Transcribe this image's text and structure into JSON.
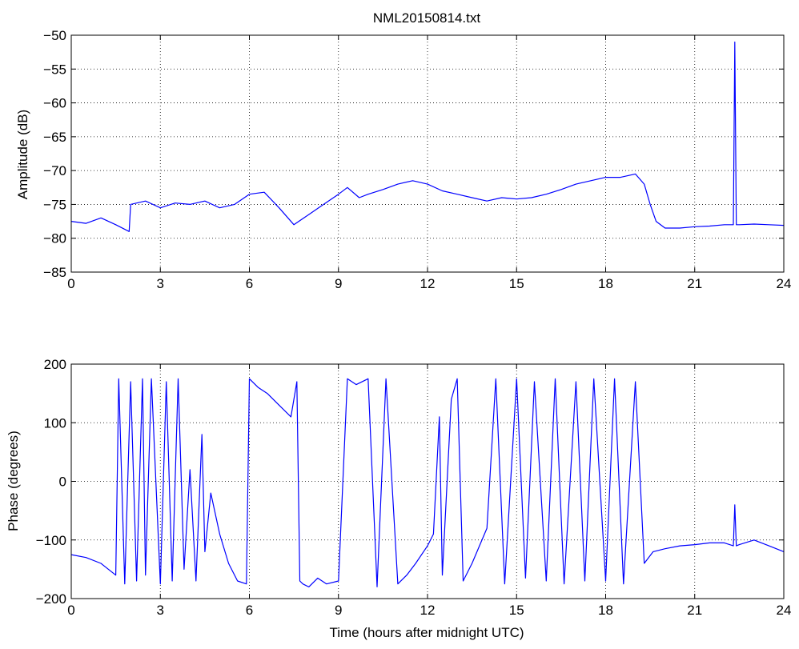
{
  "figure_title": "NML20150814.txt",
  "line_color": "#0000ff",
  "chart_data": [
    {
      "type": "line",
      "title": "NML20150814.txt",
      "xlabel": "",
      "ylabel": "Amplitude (dB)",
      "xlim": [
        0,
        24
      ],
      "ylim": [
        -85,
        -50
      ],
      "xticks": [
        0,
        3,
        6,
        9,
        12,
        15,
        18,
        21,
        24
      ],
      "yticks": [
        -85,
        -80,
        -75,
        -70,
        -65,
        -60,
        -55,
        -50
      ],
      "grid": true,
      "series": [
        {
          "x": [
            0,
            0.5,
            1.0,
            1.5,
            1.95,
            2.0,
            2.5,
            3.0,
            3.5,
            4.0,
            4.5,
            5.0,
            5.5,
            6.0,
            6.5,
            7.0,
            7.5,
            8.0,
            8.5,
            9.0,
            9.3,
            9.7,
            10.0,
            10.5,
            11.0,
            11.5,
            12.0,
            12.5,
            13.0,
            13.5,
            14.0,
            14.5,
            15.0,
            15.5,
            16.0,
            16.5,
            17.0,
            17.5,
            18.0,
            18.5,
            19.0,
            19.3,
            19.5,
            19.7,
            20.0,
            20.5,
            21.0,
            21.5,
            22.0,
            22.3,
            22.35,
            22.4,
            22.5,
            23.0,
            23.5,
            24.0
          ],
          "y": [
            -77.5,
            -77.8,
            -77.0,
            -78.0,
            -79.0,
            -75.0,
            -74.5,
            -75.5,
            -74.8,
            -75.0,
            -74.5,
            -75.5,
            -75.0,
            -73.5,
            -73.2,
            -75.5,
            -78.0,
            -76.5,
            -75.0,
            -73.5,
            -72.5,
            -74.0,
            -73.5,
            -72.8,
            -72.0,
            -71.5,
            -72.0,
            -73.0,
            -73.5,
            -74.0,
            -74.5,
            -74.0,
            -74.2,
            -74.0,
            -73.5,
            -72.8,
            -72.0,
            -71.5,
            -71.0,
            -71.0,
            -70.5,
            -72.0,
            -75.0,
            -77.5,
            -78.5,
            -78.5,
            -78.3,
            -78.2,
            -78.0,
            -78.0,
            -51.0,
            -78.0,
            -78.0,
            -77.9,
            -78.0,
            -78.1
          ]
        }
      ]
    },
    {
      "type": "line",
      "title": "",
      "xlabel": "Time (hours after midnight UTC)",
      "ylabel": "Phase (degrees)",
      "xlim": [
        0,
        24
      ],
      "ylim": [
        -200,
        200
      ],
      "xticks": [
        0,
        3,
        6,
        9,
        12,
        15,
        18,
        21,
        24
      ],
      "yticks": [
        -200,
        -100,
        0,
        100,
        200
      ],
      "grid": true,
      "series": [
        {
          "x": [
            0,
            0.5,
            1.0,
            1.5,
            1.6,
            1.8,
            2.0,
            2.2,
            2.4,
            2.5,
            2.7,
            3.0,
            3.2,
            3.4,
            3.6,
            3.8,
            4.0,
            4.2,
            4.4,
            4.5,
            4.7,
            5.0,
            5.3,
            5.6,
            5.9,
            6.0,
            6.3,
            6.6,
            7.0,
            7.4,
            7.6,
            7.7,
            7.8,
            8.0,
            8.3,
            8.6,
            9.0,
            9.3,
            9.6,
            10.0,
            10.3,
            10.6,
            11.0,
            11.3,
            11.6,
            12.0,
            12.2,
            12.4,
            12.5,
            12.8,
            13.0,
            13.2,
            13.5,
            14.0,
            14.3,
            14.6,
            15.0,
            15.3,
            15.6,
            16.0,
            16.3,
            16.6,
            17.0,
            17.3,
            17.6,
            18.0,
            18.3,
            18.6,
            19.0,
            19.3,
            19.6,
            20.0,
            20.5,
            21.0,
            21.5,
            22.0,
            22.3,
            22.35,
            22.4,
            22.5,
            23.0,
            23.5,
            24.0
          ],
          "y": [
            -125,
            -130,
            -140,
            -160,
            175,
            -175,
            170,
            -170,
            175,
            -160,
            175,
            -175,
            170,
            -170,
            175,
            -150,
            20,
            -170,
            80,
            -120,
            -20,
            -90,
            -140,
            -170,
            -175,
            175,
            160,
            150,
            130,
            110,
            170,
            -170,
            -175,
            -180,
            -165,
            -175,
            -170,
            175,
            165,
            175,
            -180,
            175,
            -175,
            -160,
            -140,
            -110,
            -90,
            110,
            -160,
            140,
            175,
            -170,
            -140,
            -80,
            175,
            -175,
            175,
            -165,
            170,
            -170,
            175,
            -175,
            170,
            -170,
            175,
            -170,
            175,
            -175,
            170,
            -140,
            -120,
            -115,
            -110,
            -108,
            -105,
            -105,
            -110,
            -40,
            -110,
            -108,
            -100,
            -110,
            -120
          ]
        }
      ]
    }
  ]
}
